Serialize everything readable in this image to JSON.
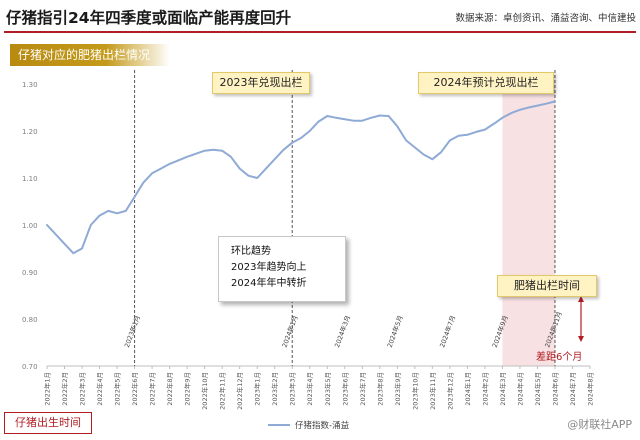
{
  "header": {
    "title": "仔猪指引24年四季度或面临产能再度回升",
    "source": "数据来源：卓创资讯、涌益咨询、中信建投"
  },
  "banner": {
    "label": "仔猪对应的肥猪出栏情况"
  },
  "annotations": {
    "tag_2023": "2023年兑现出栏",
    "tag_2024": "2024年预计兑现出栏",
    "tag_fatten": "肥猪出栏时间",
    "note_lines": [
      "环比趋势",
      "2023年趋势向上",
      "2024年年中转折"
    ],
    "lag_label": "差距6个月",
    "bottom_tag": "仔猪出生时间",
    "marker_2023_01": "2023年1月",
    "marker_2024_01": "2024年1月",
    "marker_2024_03": "2024年3月",
    "marker_2024_05": "2024年5月",
    "marker_2024_07": "2024年7月",
    "marker_2024_09": "2024年9月",
    "marker_2024_11": "2024年11月"
  },
  "watermark": "@财联社APP",
  "colors": {
    "line": "#8eaad5",
    "accent": "#b01e23",
    "banner": "#c49a1a",
    "shade": "#f8e1e3"
  },
  "chart_data": {
    "type": "line",
    "x": [
      "2022年1月",
      "2022年2月",
      "2022年3月",
      "2022年4月",
      "2022年5月",
      "2022年6月",
      "2022年7月",
      "2022年8月",
      "2022年9月",
      "2022年10月",
      "2022年11月",
      "2022年12月",
      "2023年1月",
      "2023年2月",
      "2023年3月",
      "2023年4月",
      "2023年5月",
      "2023年6月",
      "2023年7月",
      "2023年8月",
      "2023年9月",
      "2023年10月",
      "2023年11月",
      "2023年12月",
      "2024年1月",
      "2024年2月",
      "2024年3月",
      "2024年4月",
      "2024年5月",
      "2024年6月",
      "2024年7月",
      "2024年8月"
    ],
    "series": [
      {
        "name": "仔猪指数-涌益",
        "points": [
          [
            0,
            1.0
          ],
          [
            1,
            0.96
          ],
          [
            1.5,
            0.94
          ],
          [
            2,
            0.95
          ],
          [
            2.5,
            1.0
          ],
          [
            3,
            1.02
          ],
          [
            3.5,
            1.03
          ],
          [
            4,
            1.025
          ],
          [
            4.5,
            1.03
          ],
          [
            5,
            1.06
          ],
          [
            5.5,
            1.09
          ],
          [
            6,
            1.11
          ],
          [
            6.5,
            1.12
          ],
          [
            7,
            1.13
          ],
          [
            8,
            1.145
          ],
          [
            9,
            1.158
          ],
          [
            9.5,
            1.16
          ],
          [
            10,
            1.158
          ],
          [
            10.5,
            1.145
          ],
          [
            11,
            1.12
          ],
          [
            11.5,
            1.105
          ],
          [
            12,
            1.1
          ],
          [
            12.5,
            1.12
          ],
          [
            13,
            1.14
          ],
          [
            13.5,
            1.16
          ],
          [
            14,
            1.175
          ],
          [
            14.5,
            1.185
          ],
          [
            15,
            1.2
          ],
          [
            15.5,
            1.22
          ],
          [
            16,
            1.232
          ],
          [
            16.5,
            1.228
          ],
          [
            17,
            1.225
          ],
          [
            17.5,
            1.222
          ],
          [
            18,
            1.222
          ],
          [
            18.5,
            1.228
          ],
          [
            19,
            1.233
          ],
          [
            19.5,
            1.232
          ],
          [
            20,
            1.21
          ],
          [
            20.5,
            1.18
          ],
          [
            21,
            1.165
          ],
          [
            21.5,
            1.15
          ],
          [
            22,
            1.14
          ],
          [
            22.5,
            1.155
          ],
          [
            23,
            1.18
          ],
          [
            23.5,
            1.19
          ],
          [
            24,
            1.192
          ],
          [
            24.5,
            1.198
          ],
          [
            25,
            1.203
          ],
          [
            25.5,
            1.215
          ],
          [
            26,
            1.228
          ],
          [
            26.5,
            1.238
          ],
          [
            27,
            1.245
          ],
          [
            27.5,
            1.25
          ],
          [
            28,
            1.254
          ],
          [
            28.5,
            1.258
          ],
          [
            29,
            1.263
          ]
        ]
      }
    ],
    "yticks": [
      "0.70",
      "0.80",
      "0.90",
      "1.00",
      "1.10",
      "1.20",
      "1.30"
    ],
    "ylim": [
      0.7,
      1.3
    ],
    "dashed_markers": [
      5,
      14,
      29
    ],
    "shaded_range": [
      26,
      29
    ],
    "legend_position": "bottom-center",
    "grid": false
  }
}
